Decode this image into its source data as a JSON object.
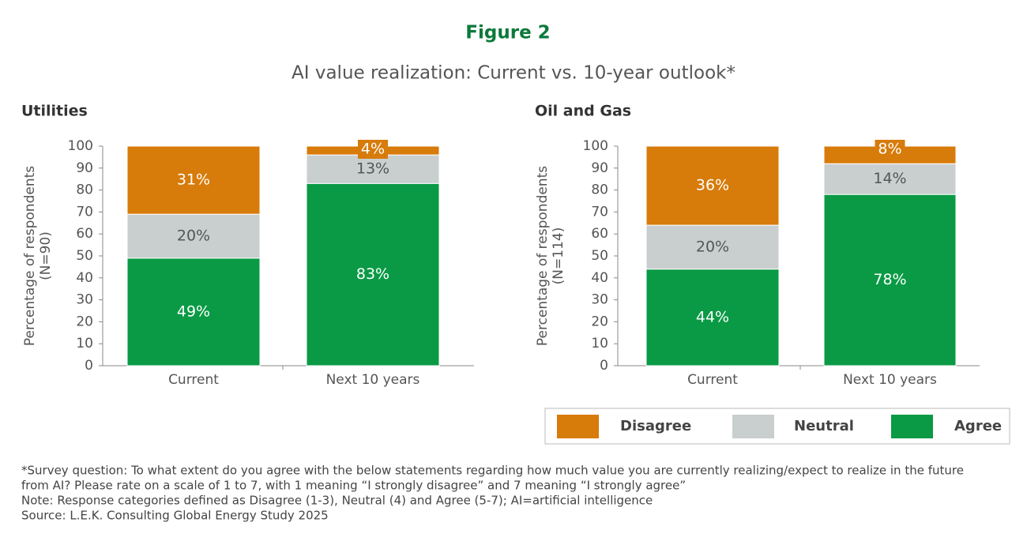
{
  "figure": "Figure 2",
  "title": "AI value realization: Current vs. 10-year outlook*",
  "chart_data": [
    {
      "type": "bar",
      "stacked": true,
      "title": "Utilities",
      "ylabel": [
        "Percentage of respondents",
        "(N=90)"
      ],
      "categories": [
        "Current",
        "Next 10 years"
      ],
      "series": [
        {
          "name": "Agree",
          "color": "#0a9a45",
          "values": [
            49,
            83
          ],
          "value_labels": [
            "49%",
            "83%"
          ]
        },
        {
          "name": "Neutral",
          "color": "#c9cfcf",
          "values": [
            20,
            13
          ],
          "value_labels": [
            "20%",
            "13%"
          ]
        },
        {
          "name": "Disagree",
          "color": "#d77b0a",
          "values": [
            31,
            4
          ],
          "value_labels": [
            "31%",
            "4%"
          ]
        }
      ],
      "ylim": [
        0,
        100
      ],
      "yticks": [
        0,
        10,
        20,
        30,
        40,
        50,
        60,
        70,
        80,
        90,
        100
      ]
    },
    {
      "type": "bar",
      "stacked": true,
      "title": "Oil and Gas",
      "ylabel": [
        "Percentage of respondents",
        "(N=114)"
      ],
      "categories": [
        "Current",
        "Next 10 years"
      ],
      "series": [
        {
          "name": "Agree",
          "color": "#0a9a45",
          "values": [
            44,
            78
          ],
          "value_labels": [
            "44%",
            "78%"
          ]
        },
        {
          "name": "Neutral",
          "color": "#c9cfcf",
          "values": [
            20,
            14
          ],
          "value_labels": [
            "20%",
            "14%"
          ]
        },
        {
          "name": "Disagree",
          "color": "#d77b0a",
          "values": [
            36,
            8
          ],
          "value_labels": [
            "36%",
            "8%"
          ]
        }
      ],
      "ylim": [
        0,
        100
      ],
      "yticks": [
        0,
        10,
        20,
        30,
        40,
        50,
        60,
        70,
        80,
        90,
        100
      ]
    }
  ],
  "notes": [
    "*Survey question: To what extent do you agree with the below statements regarding how much value you are currently realizing/expect to realize in the future",
    "from AI? Please rate on a scale of 1 to 7, with 1 meaning “I strongly disagree” and 7 meaning “I strongly agree”",
    "Note: Response categories defined as Disagree (1-3), Neutral (4) and Agree (5-7); AI=artificial intelligence",
    "Source: L.E.K. Consulting Global Energy Study 2025"
  ]
}
